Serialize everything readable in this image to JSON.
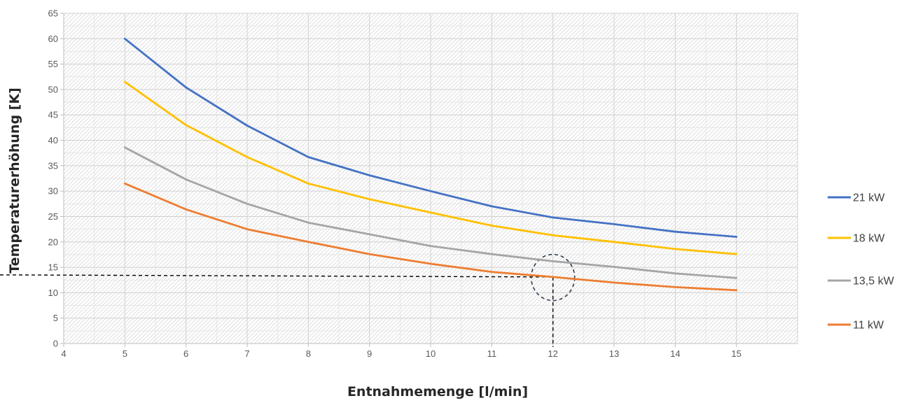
{
  "chart_data": {
    "type": "line",
    "title": "",
    "xlabel": "Entnahmemenge [l/min]",
    "ylabel": "Temperaturerhöhung [K]",
    "xlim": [
      4,
      16
    ],
    "ylim": [
      0,
      65
    ],
    "x_ticks": [
      "4",
      "5",
      "6",
      "7",
      "8",
      "9",
      "10",
      "11",
      "12",
      "13",
      "14",
      "15"
    ],
    "y_ticks": [
      "0",
      "5",
      "10",
      "15",
      "20",
      "25",
      "30",
      "35",
      "40",
      "45",
      "50",
      "55",
      "60",
      "65"
    ],
    "x": [
      5,
      6,
      7,
      8,
      9,
      10,
      11,
      12,
      13,
      14,
      15
    ],
    "grid": true,
    "legend_position": "right",
    "series": [
      {
        "name": "21 kW",
        "color": "#4472C4",
        "values": [
          60.0,
          50.4,
          42.9,
          36.7,
          33.1,
          30.0,
          27.0,
          24.8,
          23.5,
          22.0,
          21.0
        ]
      },
      {
        "name": "18 kW",
        "color": "#FFC000",
        "values": [
          51.5,
          43.0,
          36.7,
          31.5,
          28.4,
          25.8,
          23.2,
          21.3,
          20.0,
          18.6,
          17.6
        ]
      },
      {
        "name": "13,5 kW",
        "color": "#A5A5A5",
        "values": [
          38.6,
          32.3,
          27.5,
          23.8,
          21.5,
          19.2,
          17.6,
          16.2,
          15.1,
          13.8,
          12.9
        ]
      },
      {
        "name": "11 kW",
        "color": "#ED7D31",
        "values": [
          31.5,
          26.4,
          22.5,
          20.0,
          17.6,
          15.7,
          14.1,
          13.1,
          12.0,
          11.1,
          10.5
        ]
      }
    ],
    "annotations": {
      "reference_point": {
        "x": 12,
        "y": 13.1
      },
      "circle_center": {
        "x": 12,
        "y": 13
      },
      "line_color": "#000000",
      "circle_color": "#2F3E50"
    }
  }
}
